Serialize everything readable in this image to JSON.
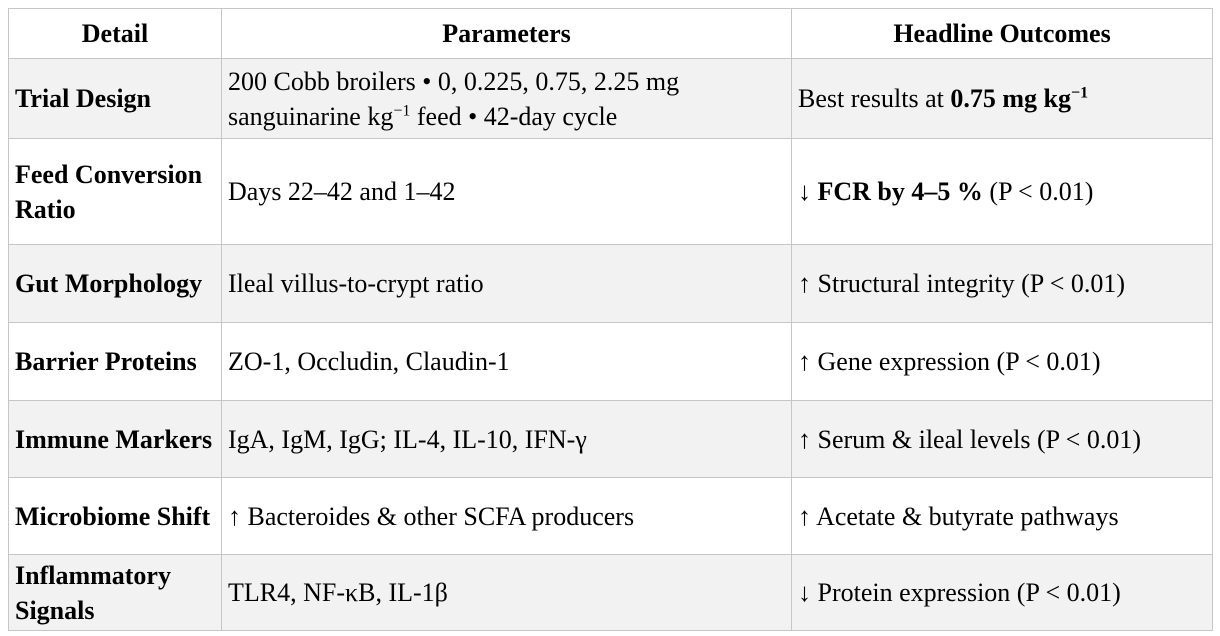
{
  "table": {
    "headers": [
      "Detail",
      "Parameters",
      "Headline Outcomes"
    ],
    "rows": [
      {
        "detail": "Trial Design",
        "param_line1": "200 Cobb broilers • 0, 0.225, 0.75, 2.25 mg",
        "param_line2_a": "sanguinarine kg",
        "param_line2_sup": "−1",
        "param_line2_b": " feed • 42-day cycle",
        "outcome_a": "Best results at ",
        "outcome_bold": "0.75 mg kg",
        "outcome_sup": "−1"
      },
      {
        "detail": "Feed Conversion Ratio",
        "param": "Days 22–42 and 1–42",
        "outcome_a": "↓ ",
        "outcome_bold": "FCR by 4–5 %",
        "outcome_b": " (P < 0.01)"
      },
      {
        "detail": "Gut Morphology",
        "param": "Ileal villus-to-crypt ratio",
        "outcome": "↑ Structural integrity (P < 0.01)"
      },
      {
        "detail": "Barrier Proteins",
        "param": "ZO-1, Occludin, Claudin-1",
        "outcome": "↑ Gene expression (P < 0.01)"
      },
      {
        "detail": "Immune Markers",
        "param": "IgA, IgM, IgG; IL-4, IL-10, IFN-γ",
        "outcome": "↑ Serum & ileal levels (P < 0.01)"
      },
      {
        "detail": "Microbiome Shift",
        "param": "↑ Bacteroides & other SCFA producers",
        "outcome": "↑ Acetate & butyrate pathways"
      },
      {
        "detail": "Inflammatory Signals",
        "param": "TLR4, NF-κB, IL-1β",
        "outcome": "↓ Protein expression (P < 0.01)"
      }
    ]
  }
}
